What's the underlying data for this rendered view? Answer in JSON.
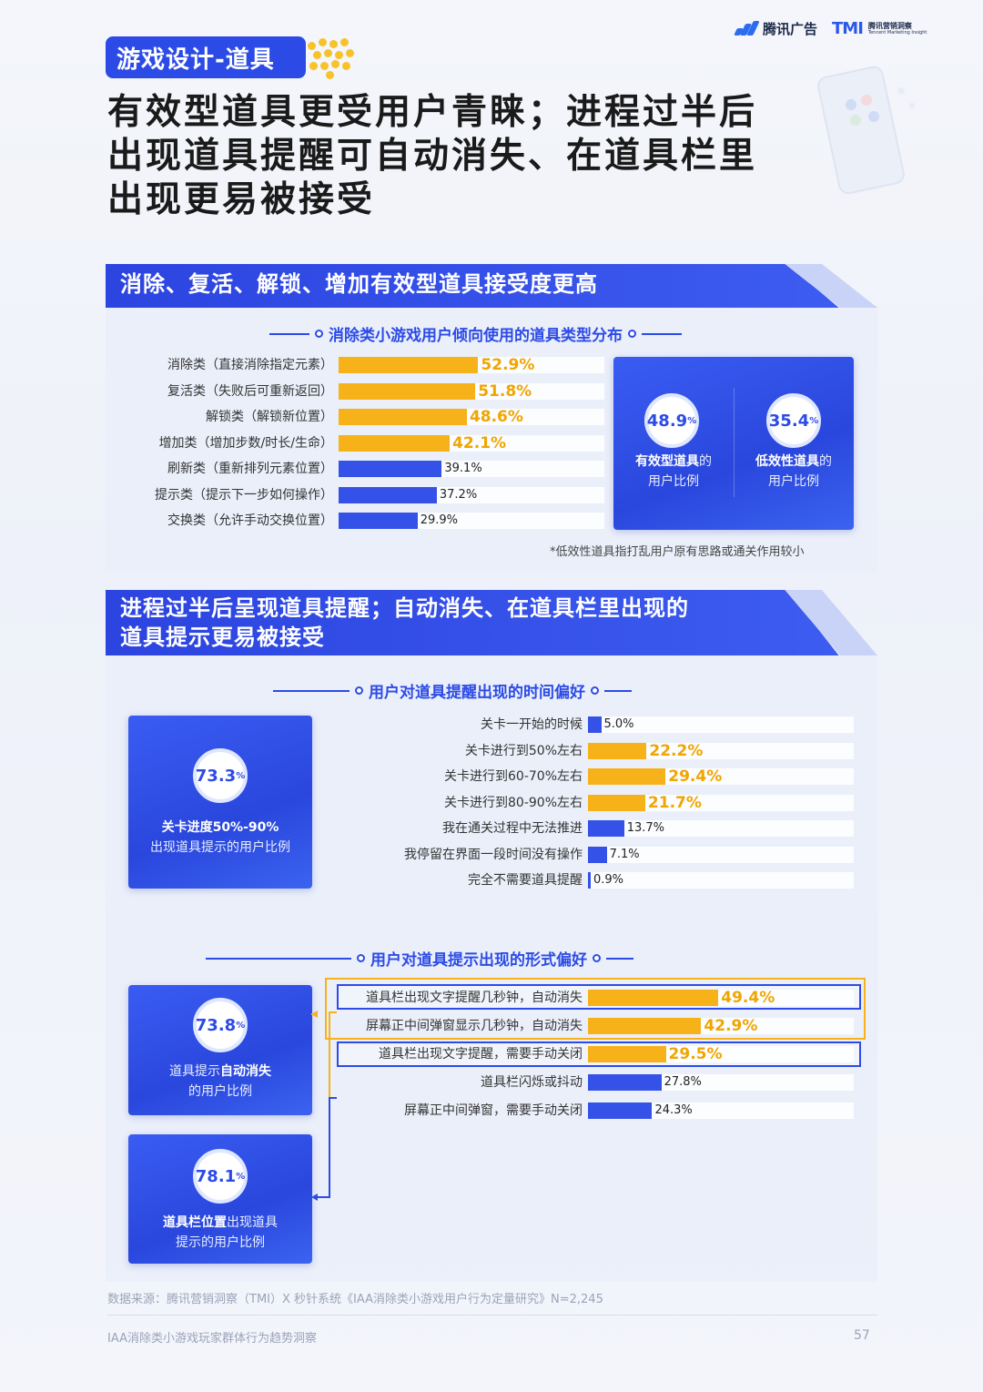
{
  "brand": {
    "name": "腾讯广告",
    "tmi_mark": "TMI",
    "tmi_cn": "腾讯营销洞察",
    "tmi_en": "Tencent Marketing Insight"
  },
  "section_tag": "游戏设计-道具",
  "headline": [
    "有效型道具更受用户青睐；进程过半后",
    "出现道具提醒可自动消失、在道具栏里",
    "出现更易被接受"
  ],
  "banner1": "消除、复活、解锁、增加有效型道具接受度更高",
  "banner2": [
    "进程过半后呈现道具提醒；自动消失、在道具栏里出现的",
    "道具提示更易被接受"
  ],
  "stats1": [
    {
      "value": "48.9",
      "unit": "%",
      "label_bold": "有效型道具",
      "label_rest": "的",
      "label2": "用户比例"
    },
    {
      "value": "35.4",
      "unit": "%",
      "label_bold": "低效性道具",
      "label_rest": "的",
      "label2": "用户比例"
    }
  ],
  "footnote": "*低效性道具指打乱用户原有思路或通关作用较小",
  "stat_time": {
    "value": "73.3",
    "unit": "%",
    "label_bold": "关卡进度50%-90%",
    "label2": "出现道具提示的用户比例"
  },
  "stat_auto": {
    "value": "73.8",
    "unit": "%",
    "label_pre": "道具提示",
    "label_bold": "自动消失",
    "label2": "的用户比例"
  },
  "stat_bar": {
    "value": "78.1",
    "unit": "%",
    "label_bold": "道具栏位置",
    "label_rest": "出现道具",
    "label2": "提示的用户比例"
  },
  "chart_data": [
    {
      "type": "bar",
      "title": "消除类小游戏用户倾向使用的道具类型分布",
      "categories": [
        "消除类（直接消除指定元素）",
        "复活类（失败后可重新返回）",
        "解锁类（解锁新位置）",
        "增加类（增加步数/时长/生命）",
        "刷新类（重新排列元素位置）",
        "提示类（提示下一步如何操作）",
        "交换类（允许手动交换位置）"
      ],
      "values": [
        52.9,
        51.8,
        48.6,
        42.1,
        39.1,
        37.2,
        29.9
      ],
      "labels": [
        "52.9%",
        "51.8%",
        "48.6%",
        "42.1%",
        "39.1%",
        "37.2%",
        "29.9%"
      ],
      "highlight": [
        true,
        true,
        true,
        true,
        false,
        false,
        false
      ],
      "xlim": [
        0,
        100
      ]
    },
    {
      "type": "bar",
      "title": "用户对道具提醒出现的时间偏好",
      "categories": [
        "关卡一开始的时候",
        "关卡进行到50%左右",
        "关卡进行到60-70%左右",
        "关卡进行到80-90%左右",
        "我在通关过程中无法推进",
        "我停留在界面一段时间没有操作",
        "完全不需要道具提醒"
      ],
      "values": [
        5.0,
        22.2,
        29.4,
        21.7,
        13.7,
        7.1,
        0.9
      ],
      "labels": [
        "5.0%",
        "22.2%",
        "29.4%",
        "21.7%",
        "13.7%",
        "7.1%",
        "0.9%"
      ],
      "highlight": [
        false,
        true,
        true,
        true,
        false,
        false,
        false
      ],
      "xlim": [
        0,
        100
      ]
    },
    {
      "type": "bar",
      "title": "用户对道具提示出现的形式偏好",
      "categories": [
        "道具栏出现文字提醒几秒钟，自动消失",
        "屏幕正中间弹窗显示几秒钟，自动消失",
        "道具栏出现文字提醒，需要手动关闭",
        "道具栏闪烁或抖动",
        "屏幕正中间弹窗，需要手动关闭"
      ],
      "values": [
        49.4,
        42.9,
        29.5,
        27.8,
        24.3
      ],
      "labels": [
        "49.4%",
        "42.9%",
        "29.5%",
        "27.8%",
        "24.3%"
      ],
      "highlight": [
        true,
        true,
        true,
        false,
        false
      ],
      "xlim": [
        0,
        100
      ]
    }
  ],
  "colors": {
    "blue": "#2c4be6",
    "bar_blue": "#3552e8",
    "gold": "#f7b21a"
  },
  "source": "数据来源：腾讯营销洞察（TMI）X 秒针系统《IAA消除类小游戏用户行为定量研究》N=2,245",
  "footer_left": "IAA消除类小游戏玩家群体行为趋势洞察",
  "page_number": "57"
}
